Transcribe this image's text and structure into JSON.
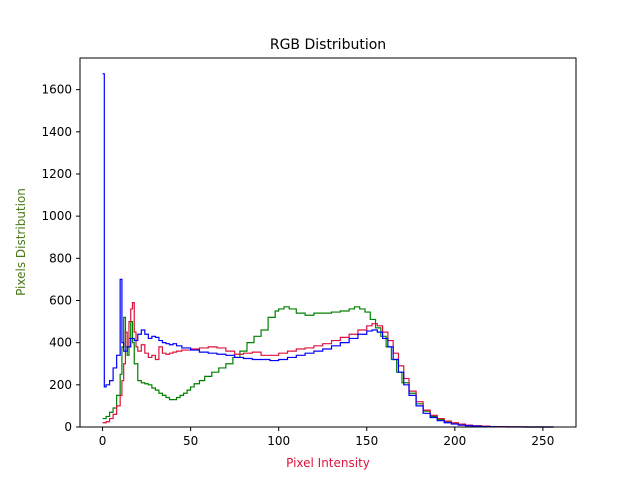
{
  "chart_data": {
    "type": "line",
    "title": "RGB Distribution",
    "xlabel": "Pixel Intensity",
    "ylabel": "Pixels Distribution",
    "xlabel_color": "#dc143c",
    "ylabel_color": "#4a7a1a",
    "xlim": [
      -12.8,
      268.8
    ],
    "ylim": [
      0,
      1750
    ],
    "xticks": [
      0,
      50,
      100,
      150,
      200,
      250
    ],
    "yticks": [
      0,
      200,
      400,
      600,
      800,
      1000,
      1200,
      1400,
      1600
    ],
    "grid": false,
    "legend": "none",
    "step": true,
    "series": [
      {
        "color": "#008000",
        "points": [
          [
            0,
            40
          ],
          [
            2,
            50
          ],
          [
            4,
            70
          ],
          [
            6,
            90
          ],
          [
            8,
            150
          ],
          [
            10,
            250
          ],
          [
            11,
            380
          ],
          [
            12,
            520
          ],
          [
            13,
            380
          ],
          [
            14,
            340
          ],
          [
            15,
            420
          ],
          [
            16,
            500
          ],
          [
            17,
            400
          ],
          [
            18,
            300
          ],
          [
            20,
            220
          ],
          [
            22,
            210
          ],
          [
            24,
            205
          ],
          [
            26,
            200
          ],
          [
            28,
            185
          ],
          [
            30,
            175
          ],
          [
            32,
            160
          ],
          [
            34,
            150
          ],
          [
            36,
            140
          ],
          [
            38,
            130
          ],
          [
            40,
            130
          ],
          [
            42,
            140
          ],
          [
            44,
            150
          ],
          [
            46,
            160
          ],
          [
            48,
            175
          ],
          [
            50,
            190
          ],
          [
            52,
            205
          ],
          [
            55,
            220
          ],
          [
            58,
            240
          ],
          [
            62,
            260
          ],
          [
            66,
            280
          ],
          [
            70,
            300
          ],
          [
            74,
            330
          ],
          [
            78,
            360
          ],
          [
            82,
            400
          ],
          [
            86,
            430
          ],
          [
            90,
            460
          ],
          [
            94,
            520
          ],
          [
            98,
            550
          ],
          [
            100,
            560
          ],
          [
            103,
            570
          ],
          [
            106,
            560
          ],
          [
            110,
            540
          ],
          [
            115,
            530
          ],
          [
            120,
            540
          ],
          [
            125,
            540
          ],
          [
            130,
            545
          ],
          [
            135,
            550
          ],
          [
            140,
            560
          ],
          [
            143,
            570
          ],
          [
            146,
            560
          ],
          [
            149,
            545
          ],
          [
            152,
            510
          ],
          [
            155,
            470
          ],
          [
            158,
            430
          ],
          [
            161,
            380
          ],
          [
            164,
            320
          ],
          [
            167,
            260
          ],
          [
            170,
            210
          ],
          [
            174,
            160
          ],
          [
            178,
            110
          ],
          [
            182,
            75
          ],
          [
            186,
            50
          ],
          [
            190,
            35
          ],
          [
            194,
            25
          ],
          [
            198,
            18
          ],
          [
            202,
            12
          ],
          [
            206,
            8
          ],
          [
            210,
            5
          ],
          [
            215,
            3
          ],
          [
            220,
            2
          ],
          [
            230,
            1
          ],
          [
            240,
            0
          ],
          [
            256,
            0
          ]
        ]
      },
      {
        "color": "#dc143c",
        "points": [
          [
            0,
            20
          ],
          [
            2,
            25
          ],
          [
            4,
            40
          ],
          [
            6,
            60
          ],
          [
            8,
            100
          ],
          [
            10,
            150
          ],
          [
            11,
            220
          ],
          [
            12,
            300
          ],
          [
            13,
            450
          ],
          [
            14,
            380
          ],
          [
            15,
            500
          ],
          [
            16,
            560
          ],
          [
            17,
            590
          ],
          [
            18,
            450
          ],
          [
            19,
            380
          ],
          [
            20,
            360
          ],
          [
            22,
            390
          ],
          [
            24,
            350
          ],
          [
            26,
            330
          ],
          [
            28,
            340
          ],
          [
            30,
            320
          ],
          [
            32,
            380
          ],
          [
            34,
            350
          ],
          [
            36,
            345
          ],
          [
            38,
            350
          ],
          [
            40,
            355
          ],
          [
            42,
            360
          ],
          [
            45,
            365
          ],
          [
            50,
            370
          ],
          [
            55,
            375
          ],
          [
            60,
            380
          ],
          [
            65,
            375
          ],
          [
            70,
            360
          ],
          [
            75,
            345
          ],
          [
            80,
            350
          ],
          [
            85,
            355
          ],
          [
            90,
            340
          ],
          [
            95,
            340
          ],
          [
            100,
            350
          ],
          [
            105,
            360
          ],
          [
            110,
            370
          ],
          [
            115,
            375
          ],
          [
            120,
            385
          ],
          [
            125,
            395
          ],
          [
            130,
            410
          ],
          [
            135,
            425
          ],
          [
            140,
            440
          ],
          [
            145,
            460
          ],
          [
            150,
            480
          ],
          [
            153,
            490
          ],
          [
            156,
            480
          ],
          [
            159,
            450
          ],
          [
            162,
            410
          ],
          [
            165,
            350
          ],
          [
            168,
            290
          ],
          [
            171,
            230
          ],
          [
            174,
            170
          ],
          [
            178,
            120
          ],
          [
            182,
            80
          ],
          [
            186,
            55
          ],
          [
            190,
            40
          ],
          [
            194,
            28
          ],
          [
            198,
            20
          ],
          [
            202,
            14
          ],
          [
            206,
            9
          ],
          [
            210,
            6
          ],
          [
            215,
            4
          ],
          [
            220,
            2
          ],
          [
            230,
            1
          ],
          [
            240,
            0
          ],
          [
            256,
            0
          ]
        ]
      },
      {
        "color": "#0000ff",
        "points": [
          [
            0,
            1675
          ],
          [
            1,
            190
          ],
          [
            2,
            200
          ],
          [
            4,
            220
          ],
          [
            6,
            280
          ],
          [
            8,
            340
          ],
          [
            10,
            700
          ],
          [
            11,
            400
          ],
          [
            12,
            360
          ],
          [
            14,
            380
          ],
          [
            16,
            420
          ],
          [
            18,
            410
          ],
          [
            20,
            440
          ],
          [
            22,
            460
          ],
          [
            24,
            440
          ],
          [
            26,
            420
          ],
          [
            28,
            430
          ],
          [
            30,
            425
          ],
          [
            32,
            410
          ],
          [
            34,
            400
          ],
          [
            36,
            395
          ],
          [
            38,
            390
          ],
          [
            40,
            395
          ],
          [
            42,
            385
          ],
          [
            45,
            375
          ],
          [
            50,
            365
          ],
          [
            55,
            355
          ],
          [
            60,
            350
          ],
          [
            65,
            345
          ],
          [
            70,
            340
          ],
          [
            75,
            330
          ],
          [
            80,
            325
          ],
          [
            85,
            320
          ],
          [
            90,
            320
          ],
          [
            95,
            315
          ],
          [
            100,
            320
          ],
          [
            105,
            330
          ],
          [
            110,
            340
          ],
          [
            115,
            350
          ],
          [
            120,
            360
          ],
          [
            125,
            370
          ],
          [
            130,
            385
          ],
          [
            135,
            400
          ],
          [
            140,
            420
          ],
          [
            145,
            440
          ],
          [
            150,
            455
          ],
          [
            153,
            460
          ],
          [
            156,
            450
          ],
          [
            159,
            420
          ],
          [
            162,
            380
          ],
          [
            165,
            320
          ],
          [
            168,
            260
          ],
          [
            171,
            200
          ],
          [
            174,
            150
          ],
          [
            178,
            100
          ],
          [
            182,
            65
          ],
          [
            186,
            45
          ],
          [
            190,
            30
          ],
          [
            194,
            20
          ],
          [
            198,
            14
          ],
          [
            202,
            9
          ],
          [
            206,
            6
          ],
          [
            210,
            4
          ],
          [
            215,
            2
          ],
          [
            220,
            1
          ],
          [
            230,
            0
          ],
          [
            256,
            0
          ]
        ]
      }
    ]
  }
}
